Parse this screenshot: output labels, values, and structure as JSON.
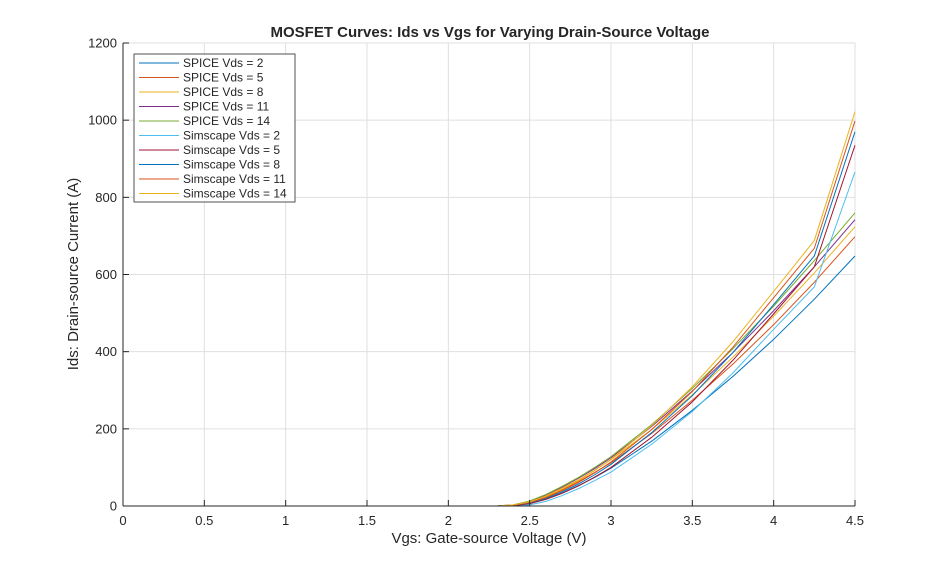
{
  "chart_data": {
    "type": "line",
    "title": "MOSFET Curves: Ids vs Vgs for Varying Drain-Source Voltage",
    "xlabel": "Vgs: Gate-source Voltage (V)",
    "ylabel": "Ids: Drain-source Current (A)",
    "xlim": [
      0,
      4.5
    ],
    "ylim": [
      0,
      1200
    ],
    "xticks": [
      0,
      0.5,
      1,
      1.5,
      2,
      2.5,
      3,
      3.5,
      4,
      4.5
    ],
    "xtick_labels": [
      "0",
      "0.5",
      "1",
      "1.5",
      "2",
      "2.5",
      "3",
      "3.5",
      "4",
      "4.5"
    ],
    "yticks": [
      0,
      200,
      400,
      600,
      800,
      1000,
      1200
    ],
    "ytick_labels": [
      "0",
      "200",
      "400",
      "600",
      "800",
      "1000",
      "1200"
    ],
    "grid": true,
    "legend_position": "top-left",
    "x": [
      0,
      0.5,
      1.0,
      1.5,
      2.0,
      2.2,
      2.3,
      2.4,
      2.5,
      2.6,
      2.7,
      2.8,
      2.9,
      3.0,
      3.25,
      3.5,
      3.75,
      4.0,
      4.25,
      4.5
    ],
    "series": [
      {
        "name": "SPICE Vds = 2",
        "color": "#0072BD",
        "values": [
          0,
          0,
          0,
          0,
          0,
          0,
          0,
          1,
          6,
          18,
          34,
          53,
          74,
          98,
          168,
          248,
          336,
          432,
          536,
          648
        ]
      },
      {
        "name": "SPICE Vds = 5",
        "color": "#D95319",
        "values": [
          0,
          0,
          0,
          0,
          0,
          0,
          0,
          2,
          9,
          24,
          42,
          63,
          87,
          112,
          188,
          274,
          368,
          470,
          580,
          698
        ]
      },
      {
        "name": "SPICE Vds = 8",
        "color": "#EDB120",
        "values": [
          0,
          0,
          0,
          0,
          0,
          0,
          0,
          3,
          11,
          27,
          46,
          68,
          93,
          120,
          198,
          288,
          386,
          492,
          604,
          724
        ]
      },
      {
        "name": "SPICE Vds = 11",
        "color": "#7E2F8E",
        "values": [
          0,
          0,
          0,
          0,
          0,
          0,
          0,
          3,
          12,
          29,
          49,
          72,
          97,
          125,
          206,
          298,
          398,
          506,
          620,
          742
        ]
      },
      {
        "name": "SPICE Vds = 14",
        "color": "#77AC30",
        "values": [
          0,
          0,
          0,
          0,
          0,
          0,
          0,
          3,
          13,
          30,
          51,
          74,
          100,
          128,
          211,
          305,
          408,
          518,
          636,
          760
        ]
      },
      {
        "name": "Simscape Vds = 2",
        "color": "#4DBEEE",
        "values": [
          0,
          0,
          0,
          0,
          0,
          0,
          0,
          0,
          3,
          12,
          27,
          45,
          66,
          88,
          160,
          245,
          345,
          458,
          568,
          866
        ]
      },
      {
        "name": "Simscape Vds = 5",
        "color": "#A2142F",
        "values": [
          0,
          0,
          0,
          0,
          0,
          0,
          0,
          1,
          6,
          17,
          33,
          52,
          75,
          100,
          178,
          270,
          378,
          498,
          620,
          935
        ]
      },
      {
        "name": "Simscape Vds = 8",
        "color": "#0072BD",
        "values": [
          0,
          0,
          0,
          0,
          0,
          0,
          0,
          2,
          8,
          20,
          37,
          57,
          81,
          108,
          190,
          286,
          398,
          522,
          648,
          970
        ]
      },
      {
        "name": "Simscape Vds = 11",
        "color": "#D95319",
        "values": [
          0,
          0,
          0,
          0,
          0,
          0,
          0,
          2,
          9,
          22,
          40,
          61,
          86,
          114,
          198,
          297,
          412,
          540,
          668,
          998
        ]
      },
      {
        "name": "Simscape Vds = 14",
        "color": "#EDB120",
        "values": [
          0,
          0,
          0,
          0,
          0,
          0,
          0,
          3,
          11,
          25,
          44,
          66,
          92,
          121,
          208,
          309,
          426,
          556,
          688,
          1022
        ]
      }
    ]
  },
  "style": {
    "background": "#ffffff",
    "axes_color": "#262626",
    "grid_color": "#dfdfdf",
    "legend_border": "#262626"
  }
}
